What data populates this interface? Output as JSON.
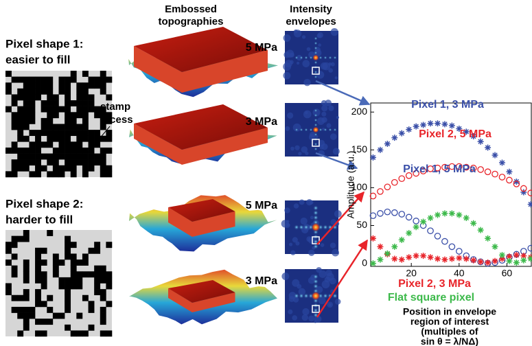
{
  "figure": {
    "shapes": [
      {
        "title": "Pixel shape 1:",
        "subtitle": "easier to fill"
      },
      {
        "title": "Pixel shape 2:",
        "subtitle": "harder to fill"
      }
    ],
    "column_headers": [
      [
        "Embossed",
        "topographies"
      ],
      [
        "Intensity",
        "envelopes"
      ]
    ],
    "pressure_labels": [
      "5 MPa",
      "3 MPa",
      "5 MPa",
      "3 MPa"
    ],
    "stamp_label": [
      "stamp",
      "recess"
    ]
  },
  "chart_data": {
    "type": "line",
    "ylabel": "Amplitude (a.u.)",
    "xlabel": [
      "Position in envelope",
      "region of interest",
      "(multiples of",
      "sin θ = λ/NΔ)"
    ],
    "x": [
      4,
      7,
      10,
      13,
      16,
      19,
      22,
      25,
      28,
      31,
      34,
      37,
      40,
      43,
      46,
      49,
      52,
      55,
      58,
      61,
      64,
      67,
      70
    ],
    "xlim": [
      3,
      70.5
    ],
    "xticks": [
      20,
      40,
      60
    ],
    "ylim": [
      -4,
      212
    ],
    "yticks": [
      0,
      50,
      100,
      150,
      200
    ],
    "series": [
      {
        "name": "Pixel 1, 3 MPa",
        "color": "#3a4fa8",
        "marker": "star",
        "values": [
          140,
          150,
          158,
          166,
          172,
          177,
          181,
          183,
          185,
          185,
          184,
          182,
          178,
          174,
          168,
          161,
          153,
          143,
          133,
          121,
          108,
          94,
          78
        ]
      },
      {
        "name": "Pixel 2, 5 MPa",
        "color": "#e8242a",
        "marker": "circle",
        "values": [
          89,
          95,
          101,
          107,
          112,
          116,
          119,
          122,
          125,
          126,
          127,
          128,
          128,
          127,
          126,
          124,
          121,
          118,
          114,
          110,
          105,
          99,
          93
        ]
      },
      {
        "name": "Pixel 1, 5 MPa",
        "color": "#3a4fa8",
        "marker": "circle",
        "values": [
          63,
          66,
          68,
          67,
          65,
          61,
          56,
          50,
          43,
          36,
          29,
          22,
          16,
          10,
          5,
          2,
          0,
          1,
          4,
          8,
          12,
          16,
          20
        ]
      },
      {
        "name": "Pixel 2, 3 MPa",
        "color": "#e8242a",
        "marker": "star",
        "values": [
          33,
          22,
          12,
          6,
          5,
          8,
          10,
          10,
          8,
          6,
          5,
          6,
          7,
          6,
          4,
          2,
          1,
          3,
          6,
          9,
          11,
          10,
          8
        ]
      },
      {
        "name": "Flat square pixel",
        "color": "#3cb94a",
        "marker": "star",
        "values": [
          0,
          5,
          13,
          22,
          31,
          40,
          48,
          55,
          60,
          64,
          66,
          66,
          64,
          60,
          53,
          44,
          33,
          22,
          11,
          3,
          1,
          4,
          6
        ]
      }
    ]
  }
}
